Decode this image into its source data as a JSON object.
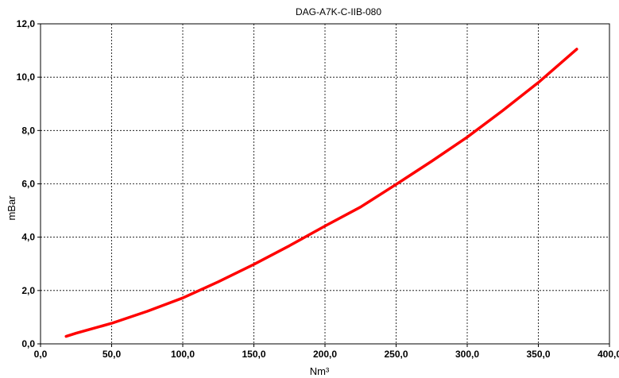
{
  "chart_data": {
    "type": "line",
    "title": "DAG-A7K-C-IIB-080",
    "xlabel": "Nm³",
    "ylabel": "mBar",
    "xlim": [
      0,
      400
    ],
    "ylim": [
      0,
      12
    ],
    "grid": true,
    "x_ticks": [
      "0,0",
      "50,0",
      "100,0",
      "150,0",
      "200,0",
      "250,0",
      "300,0",
      "350,0",
      "400,0"
    ],
    "y_ticks": [
      "0,0",
      "2,0",
      "4,0",
      "6,0",
      "8,0",
      "10,0",
      "12,0"
    ],
    "series": [
      {
        "color": "#ff0000",
        "x": [
          18,
          25,
          50,
          75,
          100,
          125,
          150,
          175,
          200,
          225,
          250,
          275,
          300,
          325,
          350,
          377
        ],
        "y": [
          0.28,
          0.4,
          0.77,
          1.22,
          1.72,
          2.33,
          2.98,
          3.68,
          4.42,
          5.13,
          5.98,
          6.85,
          7.75,
          8.75,
          9.8,
          11.05
        ]
      }
    ]
  }
}
